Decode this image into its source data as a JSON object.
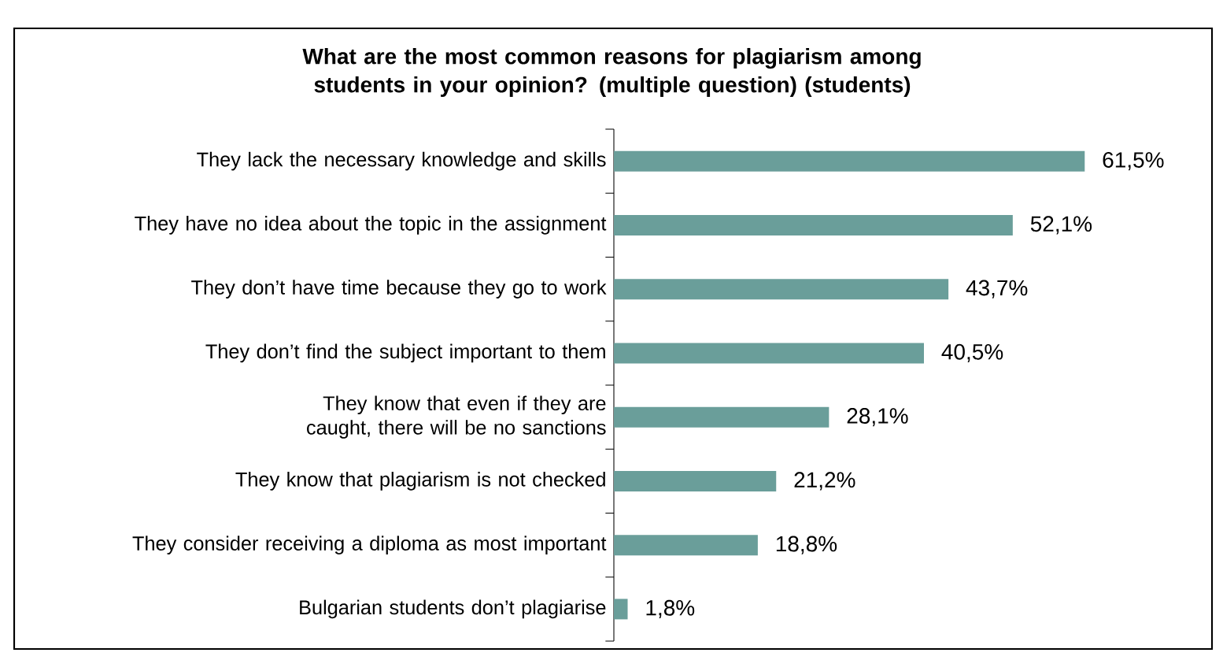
{
  "chart_data": {
    "type": "bar",
    "orientation": "horizontal",
    "title": "What are the most common reasons for plagiarism among students in your opinion? (multiple question) (students)",
    "categories": [
      "They lack the necessary knowledge and skills",
      "They have no idea about the topic in the assignment",
      "They don’t have time because they go to work",
      "They don’t find the subject important to them",
      "They know that even if they are caught, there will be no sanctions",
      "They know that plagiarism is not checked",
      "They consider receiving a diploma as most important",
      "Bulgarian students don’t plagiarise"
    ],
    "values": [
      61.5,
      52.1,
      43.7,
      40.5,
      28.1,
      21.2,
      18.8,
      1.8
    ],
    "value_labels": [
      "61,5%",
      "52,1%",
      "43,7%",
      "40,5%",
      "28,1%",
      "21,2%",
      "18,8%",
      "1,8%"
    ],
    "color": "#6a9e9a"
  }
}
